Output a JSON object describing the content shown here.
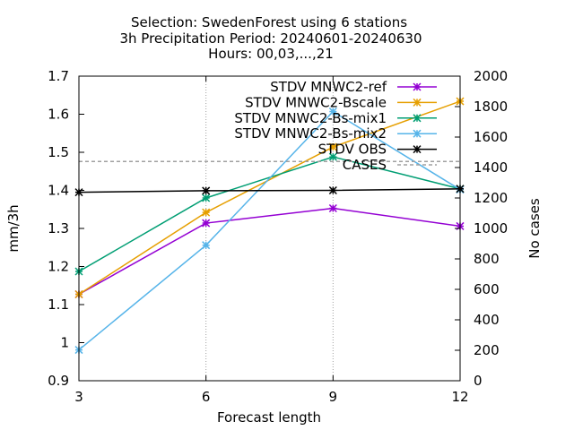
{
  "chart_data": {
    "type": "line",
    "title_lines": [
      "Selection: SwedenForest using      6 stations",
      "3h Precipitation   Period: 20240601-20240630",
      "Hours: 00,03,...,21"
    ],
    "xlabel": "Forecast length",
    "ylabel": "mm/3h",
    "y2label": "No cases",
    "x": [
      3,
      6,
      9,
      12
    ],
    "xticks": [
      "3",
      "6",
      "9",
      "12"
    ],
    "xlim": [
      3,
      12
    ],
    "ylim": [
      0.9,
      1.7
    ],
    "yticks": [
      "0.9",
      "1",
      "1.1",
      "1.2",
      "1.3",
      "1.4",
      "1.5",
      "1.6",
      "1.7"
    ],
    "y2lim": [
      0,
      2000
    ],
    "y2ticks": [
      "0",
      "200",
      "400",
      "600",
      "800",
      "1000",
      "1200",
      "1400",
      "1600",
      "1800",
      "2000"
    ],
    "grid": "vertical at x ticks",
    "legend_position": "top-right",
    "series": [
      {
        "name": "STDV MNWC2-ref",
        "color": "#9400d3",
        "marker": "x",
        "values": [
          1.127,
          1.314,
          1.353,
          1.306
        ]
      },
      {
        "name": "STDV MNWC2-Bscale",
        "color": "#e69f00",
        "marker": "x",
        "values": [
          1.127,
          1.342,
          1.514,
          1.634
        ]
      },
      {
        "name": "STDV MNWC2-Bs-mix1",
        "color": "#009e73",
        "marker": "x",
        "values": [
          1.187,
          1.38,
          1.488,
          1.404
        ]
      },
      {
        "name": "STDV MNWC2-Bs-mix2",
        "color": "#56b4e9",
        "marker": "x",
        "values": [
          0.981,
          1.256,
          1.607,
          1.402
        ]
      },
      {
        "name": "STDV OBS",
        "color": "#000000",
        "marker": "x",
        "values": [
          1.395,
          1.399,
          1.4,
          1.404
        ]
      },
      {
        "name": "CASES",
        "color": "#a0a0a0",
        "dashed": true,
        "axis": "y2",
        "values": [
          1440,
          1440,
          1440,
          1440
        ]
      }
    ]
  }
}
